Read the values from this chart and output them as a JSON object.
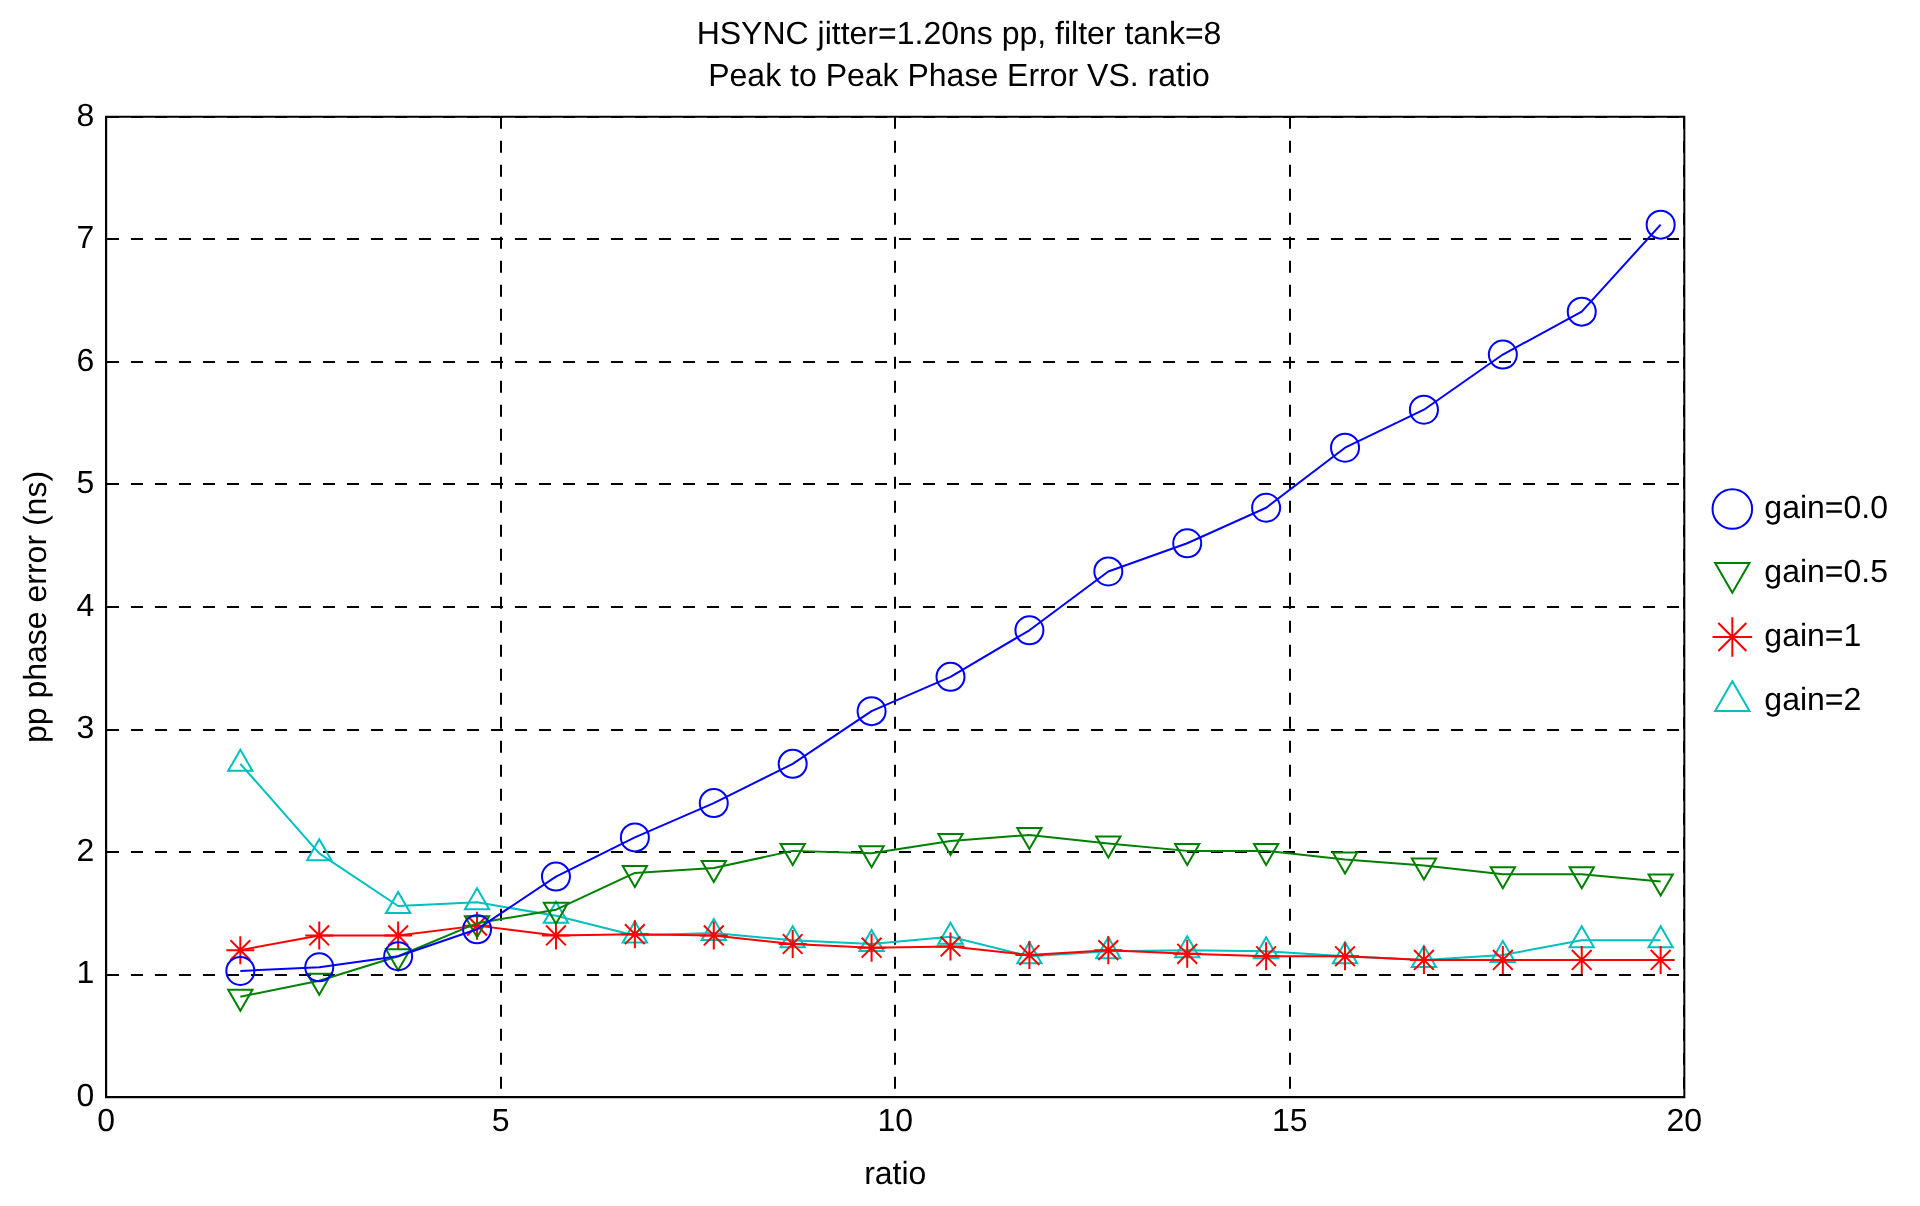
{
  "chart_data": {
    "type": "line",
    "title": "HSYNC jitter=1.20ns pp, filter tank=8",
    "subtitle": "Peak to Peak Phase Error VS. ratio",
    "xlabel": "ratio",
    "ylabel": "pp phase error (ns)",
    "x": [
      1.7,
      2.7,
      3.7,
      4.7,
      5.7,
      6.7,
      7.7,
      8.7,
      9.7,
      10.7,
      11.7,
      12.7,
      13.7,
      14.7,
      15.7,
      16.7,
      17.7,
      18.7,
      19.7
    ],
    "series": [
      {
        "name": "gain=0.0",
        "color": "#0000ff",
        "marker": "circle",
        "values": [
          1.03,
          1.06,
          1.15,
          1.37,
          1.8,
          2.12,
          2.4,
          2.72,
          3.15,
          3.43,
          3.81,
          4.29,
          4.52,
          4.81,
          5.3,
          5.61,
          6.06,
          6.41,
          7.12
        ]
      },
      {
        "name": "gain=0.5",
        "color": "#008000",
        "marker": "triangle-down",
        "values": [
          0.82,
          0.95,
          1.15,
          1.42,
          1.53,
          1.83,
          1.87,
          2.01,
          1.99,
          2.09,
          2.14,
          2.07,
          2.01,
          2.01,
          1.94,
          1.89,
          1.82,
          1.82,
          1.76
        ]
      },
      {
        "name": "gain=1",
        "color": "#ff0000",
        "marker": "cross",
        "values": [
          1.2,
          1.32,
          1.32,
          1.4,
          1.32,
          1.33,
          1.32,
          1.25,
          1.22,
          1.23,
          1.16,
          1.2,
          1.17,
          1.15,
          1.15,
          1.12,
          1.12,
          1.12,
          1.12
        ]
      },
      {
        "name": "gain=2",
        "color": "#00bfbf",
        "marker": "triangle",
        "values": [
          2.72,
          1.99,
          1.56,
          1.59,
          1.48,
          1.32,
          1.34,
          1.28,
          1.25,
          1.31,
          1.15,
          1.19,
          1.2,
          1.19,
          1.15,
          1.12,
          1.16,
          1.28,
          1.28
        ]
      }
    ],
    "xlim": [
      0,
      20
    ],
    "xticks": [
      0,
      5,
      10,
      15,
      20
    ],
    "ylim": [
      0,
      8
    ],
    "yticks": [
      0,
      1,
      2,
      3,
      4,
      5,
      6,
      7,
      8
    ],
    "grid": true,
    "legend": "right",
    "line_style": "solid"
  }
}
